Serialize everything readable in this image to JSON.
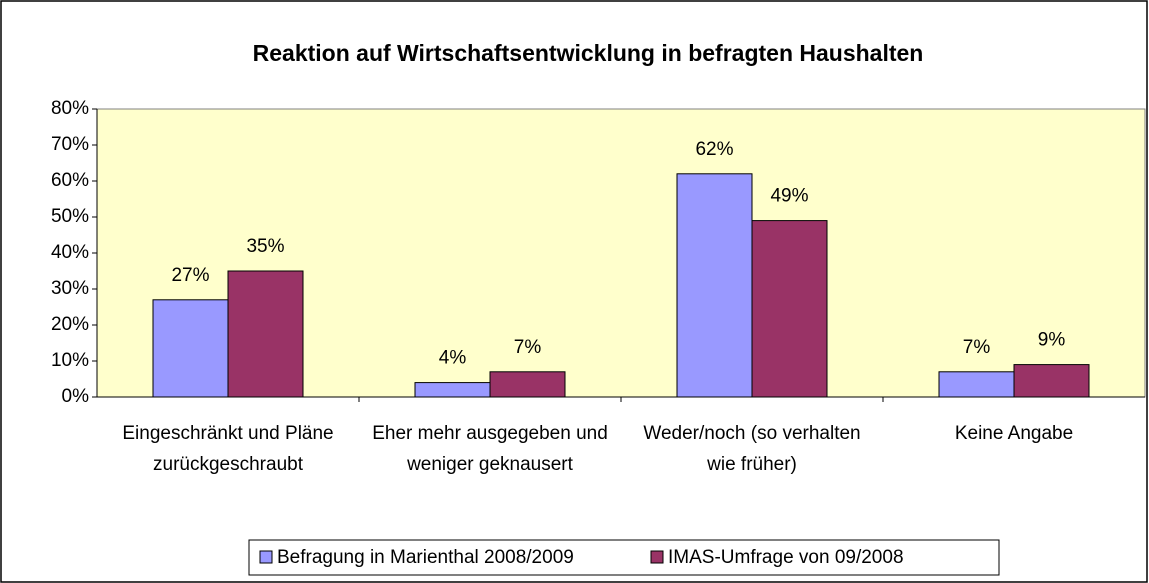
{
  "chart_data": {
    "type": "bar",
    "title": "Reaktion auf Wirtschaftsentwicklung in befragten Haushalten",
    "categories": [
      "Eingeschränkt und Pläne zurückgeschraubt",
      "Eher mehr ausgegeben und weniger geknausert",
      "Weder/noch (so verhalten wie früher)",
      "Keine Angabe"
    ],
    "series": [
      {
        "name": "Befragung in Marienthal 2008/2009",
        "color": "#9999ff",
        "values": [
          27,
          4,
          62,
          7
        ],
        "value_labels": [
          "27%",
          "4%",
          "62%",
          "7%"
        ]
      },
      {
        "name": "IMAS-Umfrage von 09/2008",
        "color": "#993366",
        "values": [
          35,
          7,
          49,
          9
        ],
        "value_labels": [
          "35%",
          "7%",
          "49%",
          "9%"
        ]
      }
    ],
    "ylim": [
      0,
      80
    ],
    "yticks": [
      {
        "value": 0,
        "label": "0%"
      },
      {
        "value": 10,
        "label": "10%"
      },
      {
        "value": 20,
        "label": "20%"
      },
      {
        "value": 30,
        "label": "30%"
      },
      {
        "value": 40,
        "label": "40%"
      },
      {
        "value": 50,
        "label": "50%"
      },
      {
        "value": 60,
        "label": "60%"
      },
      {
        "value": 70,
        "label": "70%"
      },
      {
        "value": 80,
        "label": "80%"
      }
    ],
    "plot_background": "#ffffcc",
    "legend": "bottom"
  }
}
